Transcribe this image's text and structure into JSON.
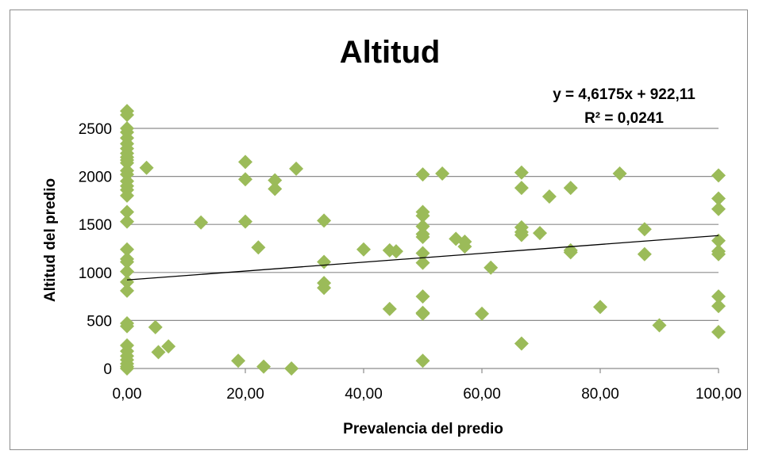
{
  "chart_data": {
    "type": "scatter",
    "title": "Altitud",
    "xlabel": "Prevalencia del predio",
    "ylabel": "Altitud del predio",
    "xlim": [
      0,
      100
    ],
    "ylim": [
      0,
      2500
    ],
    "x_ticks": [
      0,
      20,
      40,
      60,
      80,
      100
    ],
    "x_tick_labels": [
      "0,00",
      "20,00",
      "40,00",
      "60,00",
      "80,00",
      "100,00"
    ],
    "y_ticks": [
      0,
      500,
      1000,
      1500,
      2000,
      2500
    ],
    "y_tick_labels": [
      "0",
      "500",
      "1000",
      "1500",
      "2000",
      "2500"
    ],
    "grid": "horizontal",
    "legend": "none",
    "marker_color": "#9bbb59",
    "trendline": {
      "type": "linear",
      "slope": 4.6175,
      "intercept": 922.11,
      "color": "#000000",
      "equation_label": "y = 4,6175x + 922,11",
      "r2_label": "R² = 0,0241"
    },
    "points": [
      {
        "x": 0,
        "y": 2680
      },
      {
        "x": 0,
        "y": 2640
      },
      {
        "x": 0,
        "y": 2500
      },
      {
        "x": 0,
        "y": 2460
      },
      {
        "x": 0,
        "y": 2400
      },
      {
        "x": 0,
        "y": 2340
      },
      {
        "x": 0,
        "y": 2290
      },
      {
        "x": 0,
        "y": 2240
      },
      {
        "x": 0,
        "y": 2200
      },
      {
        "x": 0,
        "y": 2170
      },
      {
        "x": 0,
        "y": 2140
      },
      {
        "x": 0,
        "y": 2060
      },
      {
        "x": 0,
        "y": 2020
      },
      {
        "x": 0,
        "y": 1950
      },
      {
        "x": 0,
        "y": 1900
      },
      {
        "x": 0,
        "y": 1860
      },
      {
        "x": 0,
        "y": 1800
      },
      {
        "x": 0,
        "y": 1630
      },
      {
        "x": 0,
        "y": 1530
      },
      {
        "x": 0,
        "y": 1240
      },
      {
        "x": 0,
        "y": 1140
      },
      {
        "x": 0,
        "y": 1110
      },
      {
        "x": 0,
        "y": 1010
      },
      {
        "x": 0,
        "y": 900
      },
      {
        "x": 0,
        "y": 810
      },
      {
        "x": 0,
        "y": 470
      },
      {
        "x": 0,
        "y": 440
      },
      {
        "x": 0,
        "y": 240
      },
      {
        "x": 0,
        "y": 180
      },
      {
        "x": 0,
        "y": 130
      },
      {
        "x": 0,
        "y": 90
      },
      {
        "x": 0,
        "y": 50
      },
      {
        "x": 0,
        "y": 20
      },
      {
        "x": 0,
        "y": 0
      },
      {
        "x": 3.3,
        "y": 2090
      },
      {
        "x": 4.8,
        "y": 430
      },
      {
        "x": 5.3,
        "y": 170
      },
      {
        "x": 7.0,
        "y": 230
      },
      {
        "x": 12.5,
        "y": 1520
      },
      {
        "x": 18.8,
        "y": 80
      },
      {
        "x": 20.0,
        "y": 2150
      },
      {
        "x": 20.0,
        "y": 1970
      },
      {
        "x": 20.0,
        "y": 1530
      },
      {
        "x": 22.2,
        "y": 1260
      },
      {
        "x": 23.1,
        "y": 20
      },
      {
        "x": 25.0,
        "y": 1960
      },
      {
        "x": 25.0,
        "y": 1870
      },
      {
        "x": 27.8,
        "y": 0
      },
      {
        "x": 28.6,
        "y": 2080
      },
      {
        "x": 33.3,
        "y": 1540
      },
      {
        "x": 33.3,
        "y": 1110
      },
      {
        "x": 33.3,
        "y": 890
      },
      {
        "x": 33.3,
        "y": 840
      },
      {
        "x": 40.0,
        "y": 1240
      },
      {
        "x": 44.4,
        "y": 1230
      },
      {
        "x": 44.4,
        "y": 620
      },
      {
        "x": 45.5,
        "y": 1220
      },
      {
        "x": 50.0,
        "y": 2020
      },
      {
        "x": 50.0,
        "y": 1630
      },
      {
        "x": 50.0,
        "y": 1590
      },
      {
        "x": 50.0,
        "y": 1480
      },
      {
        "x": 50.0,
        "y": 1400
      },
      {
        "x": 50.0,
        "y": 1370
      },
      {
        "x": 50.0,
        "y": 1200
      },
      {
        "x": 50.0,
        "y": 1100
      },
      {
        "x": 50.0,
        "y": 750
      },
      {
        "x": 50.0,
        "y": 580
      },
      {
        "x": 50.0,
        "y": 570
      },
      {
        "x": 50.0,
        "y": 80
      },
      {
        "x": 53.3,
        "y": 2030
      },
      {
        "x": 55.6,
        "y": 1350
      },
      {
        "x": 57.1,
        "y": 1320
      },
      {
        "x": 57.1,
        "y": 1270
      },
      {
        "x": 60.0,
        "y": 570
      },
      {
        "x": 61.5,
        "y": 1050
      },
      {
        "x": 66.7,
        "y": 2040
      },
      {
        "x": 66.7,
        "y": 1880
      },
      {
        "x": 66.7,
        "y": 1470
      },
      {
        "x": 66.7,
        "y": 1420
      },
      {
        "x": 66.7,
        "y": 1390
      },
      {
        "x": 66.7,
        "y": 260
      },
      {
        "x": 69.8,
        "y": 1410
      },
      {
        "x": 71.4,
        "y": 1790
      },
      {
        "x": 75.0,
        "y": 1880
      },
      {
        "x": 75.0,
        "y": 1230
      },
      {
        "x": 75.0,
        "y": 1210
      },
      {
        "x": 80.0,
        "y": 640
      },
      {
        "x": 83.3,
        "y": 2030
      },
      {
        "x": 87.5,
        "y": 1450
      },
      {
        "x": 87.5,
        "y": 1190
      },
      {
        "x": 90.0,
        "y": 450
      },
      {
        "x": 100.0,
        "y": 2010
      },
      {
        "x": 100.0,
        "y": 1770
      },
      {
        "x": 100.0,
        "y": 1660
      },
      {
        "x": 100.0,
        "y": 1330
      },
      {
        "x": 100.0,
        "y": 1220
      },
      {
        "x": 100.0,
        "y": 1190
      },
      {
        "x": 100.0,
        "y": 750
      },
      {
        "x": 100.0,
        "y": 650
      },
      {
        "x": 100.0,
        "y": 380
      }
    ]
  }
}
